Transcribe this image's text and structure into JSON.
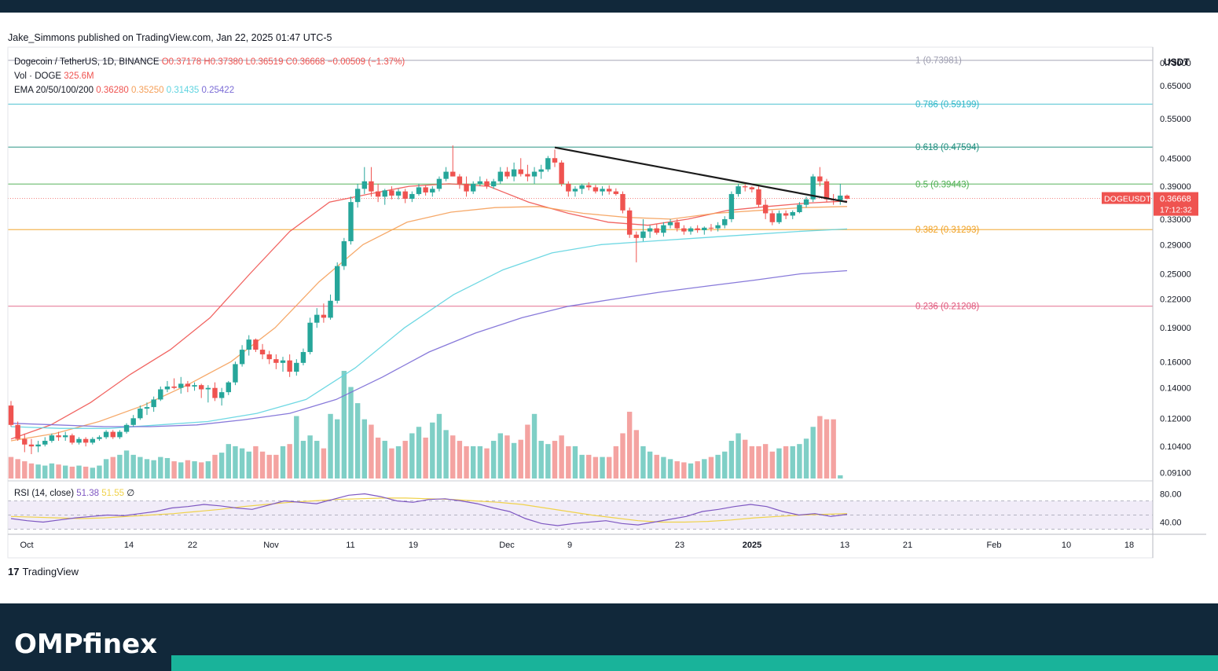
{
  "publisher_line": "Jake_Simmons published on TradingView.com, Jan 22, 2025 01:47 UTC-5",
  "footer": {
    "tradingview_label": "TradingView",
    "tradingview_glyph": "17"
  },
  "brand": {
    "name": "OMPfinex"
  },
  "colors": {
    "up": "#26a69a",
    "down": "#ef5350",
    "ema20": "#ef5350",
    "ema50": "#f5a05a",
    "ema100": "#5fd4e0",
    "ema200": "#7b6cd6",
    "rsi": "#7e57c2",
    "rsi_ma": "#f0d24a",
    "dark": "#11283a",
    "accent": "#19b39a"
  },
  "legend": {
    "symbol": "Dogecoin / TetherUS, 1D, BINANCE",
    "o": "O0.37178",
    "h": "H0.37380",
    "l": "L0.36519",
    "c": "C0.36668",
    "change": "−0.00509 (−1.37%)",
    "vol_label": "Vol · DOGE",
    "vol_value": "325.6M",
    "ema_label": "EMA 20/50/100/200",
    "ema_values": [
      "0.36280",
      "0.35250",
      "0.31435",
      "0.25422"
    ],
    "rsi_label": "RSI (14, close)",
    "rsi_value": "51.38",
    "rsi_ma_value": "51.55",
    "rsi_extra": "∅"
  },
  "price_axis": {
    "currency": "USDT",
    "labels": [
      "0.73000",
      "0.65000",
      "0.55000",
      "0.45000",
      "0.39000",
      "0.33000",
      "0.29000",
      "0.25000",
      "0.22000",
      "0.19000",
      "0.16000",
      "0.14000",
      "0.12000",
      "0.10400",
      "0.09100"
    ],
    "current_symbol": "DOGEUSDT",
    "current_price": "0.36668",
    "countdown": "17:12:32"
  },
  "rsi_axis": {
    "labels": [
      "80.00",
      "40.00"
    ]
  },
  "time_axis": {
    "labels": [
      "Oct",
      "14",
      "22",
      "Nov",
      "11",
      "19",
      "Dec",
      "9",
      "23",
      "2025",
      "13",
      "21",
      "Feb",
      "10",
      "18"
    ]
  },
  "fib_levels": [
    {
      "ratio": 1,
      "price": 0.73981,
      "label": "1 (0.73981)",
      "color": "#9e9eb0"
    },
    {
      "ratio": 0.786,
      "price": 0.59199,
      "label": "0.786 (0.59199)",
      "color": "#2bb6c8"
    },
    {
      "ratio": 0.618,
      "price": 0.47594,
      "label": "0.618 (0.47594)",
      "color": "#1e8e7e"
    },
    {
      "ratio": 0.5,
      "price": 0.39443,
      "label": "0.5 (0.39443)",
      "color": "#4caf50"
    },
    {
      "ratio": 0.382,
      "price": 0.31293,
      "label": "0.382 (0.31293)",
      "color": "#f0a020"
    },
    {
      "ratio": 0.236,
      "price": 0.21208,
      "label": "0.236 (0.21208)",
      "color": "#e0557a"
    }
  ],
  "chart_data": {
    "type": "candlestick",
    "title": "Dogecoin / TetherUS, 1D, BINANCE",
    "ylabel": "USDT",
    "ylim": [
      0.088,
      0.76
    ],
    "y_scale": "log",
    "candles": [
      [
        0.128,
        0.131,
        0.115,
        0.116
      ],
      [
        0.116,
        0.118,
        0.107,
        0.108
      ],
      [
        0.108,
        0.111,
        0.101,
        0.105
      ],
      [
        0.105,
        0.108,
        0.1,
        0.104
      ],
      [
        0.104,
        0.107,
        0.101,
        0.105
      ],
      [
        0.105,
        0.109,
        0.104,
        0.107
      ],
      [
        0.107,
        0.111,
        0.106,
        0.11
      ],
      [
        0.11,
        0.112,
        0.107,
        0.109
      ],
      [
        0.109,
        0.112,
        0.107,
        0.11
      ],
      [
        0.11,
        0.111,
        0.105,
        0.106
      ],
      [
        0.106,
        0.109,
        0.105,
        0.108
      ],
      [
        0.108,
        0.109,
        0.104,
        0.106
      ],
      [
        0.106,
        0.109,
        0.105,
        0.108
      ],
      [
        0.108,
        0.11,
        0.107,
        0.109
      ],
      [
        0.109,
        0.113,
        0.108,
        0.112
      ],
      [
        0.112,
        0.113,
        0.108,
        0.109
      ],
      [
        0.109,
        0.113,
        0.108,
        0.112
      ],
      [
        0.112,
        0.117,
        0.111,
        0.116
      ],
      [
        0.116,
        0.122,
        0.115,
        0.12
      ],
      [
        0.12,
        0.128,
        0.119,
        0.126
      ],
      [
        0.126,
        0.13,
        0.122,
        0.127
      ],
      [
        0.127,
        0.134,
        0.124,
        0.132
      ],
      [
        0.132,
        0.141,
        0.131,
        0.139
      ],
      [
        0.139,
        0.145,
        0.137,
        0.141
      ],
      [
        0.141,
        0.147,
        0.139,
        0.14
      ],
      [
        0.14,
        0.148,
        0.136,
        0.143
      ],
      [
        0.143,
        0.145,
        0.137,
        0.141
      ],
      [
        0.141,
        0.144,
        0.138,
        0.142
      ],
      [
        0.142,
        0.143,
        0.133,
        0.139
      ],
      [
        0.139,
        0.142,
        0.13,
        0.14
      ],
      [
        0.14,
        0.144,
        0.131,
        0.133
      ],
      [
        0.133,
        0.14,
        0.128,
        0.137
      ],
      [
        0.137,
        0.145,
        0.135,
        0.144
      ],
      [
        0.144,
        0.16,
        0.142,
        0.158
      ],
      [
        0.158,
        0.174,
        0.156,
        0.17
      ],
      [
        0.17,
        0.183,
        0.165,
        0.179
      ],
      [
        0.179,
        0.18,
        0.168,
        0.17
      ],
      [
        0.17,
        0.175,
        0.162,
        0.166
      ],
      [
        0.166,
        0.169,
        0.158,
        0.162
      ],
      [
        0.162,
        0.166,
        0.154,
        0.159
      ],
      [
        0.159,
        0.164,
        0.152,
        0.161
      ],
      [
        0.161,
        0.166,
        0.148,
        0.152
      ],
      [
        0.152,
        0.162,
        0.149,
        0.159
      ],
      [
        0.159,
        0.171,
        0.157,
        0.168
      ],
      [
        0.168,
        0.2,
        0.166,
        0.195
      ],
      [
        0.195,
        0.21,
        0.19,
        0.203
      ],
      [
        0.203,
        0.215,
        0.195,
        0.2
      ],
      [
        0.2,
        0.225,
        0.198,
        0.218
      ],
      [
        0.218,
        0.265,
        0.215,
        0.26
      ],
      [
        0.26,
        0.3,
        0.255,
        0.295
      ],
      [
        0.295,
        0.37,
        0.29,
        0.36
      ],
      [
        0.36,
        0.395,
        0.35,
        0.385
      ],
      [
        0.385,
        0.43,
        0.375,
        0.4
      ],
      [
        0.4,
        0.43,
        0.37,
        0.38
      ],
      [
        0.38,
        0.395,
        0.36,
        0.37
      ],
      [
        0.37,
        0.385,
        0.355,
        0.382
      ],
      [
        0.382,
        0.39,
        0.365,
        0.372
      ],
      [
        0.372,
        0.385,
        0.365,
        0.38
      ],
      [
        0.38,
        0.385,
        0.358,
        0.366
      ],
      [
        0.366,
        0.38,
        0.36,
        0.375
      ],
      [
        0.375,
        0.395,
        0.372,
        0.388
      ],
      [
        0.388,
        0.392,
        0.372,
        0.378
      ],
      [
        0.378,
        0.39,
        0.37,
        0.385
      ],
      [
        0.385,
        0.41,
        0.38,
        0.405
      ],
      [
        0.405,
        0.43,
        0.4,
        0.42
      ],
      [
        0.42,
        0.48,
        0.41,
        0.41
      ],
      [
        0.41,
        0.415,
        0.385,
        0.395
      ],
      [
        0.395,
        0.41,
        0.37,
        0.38
      ],
      [
        0.38,
        0.4,
        0.375,
        0.395
      ],
      [
        0.395,
        0.41,
        0.39,
        0.4
      ],
      [
        0.4,
        0.405,
        0.385,
        0.39
      ],
      [
        0.39,
        0.405,
        0.385,
        0.4
      ],
      [
        0.4,
        0.43,
        0.395,
        0.42
      ],
      [
        0.42,
        0.43,
        0.405,
        0.41
      ],
      [
        0.41,
        0.44,
        0.4,
        0.425
      ],
      [
        0.425,
        0.45,
        0.41,
        0.415
      ],
      [
        0.415,
        0.435,
        0.4,
        0.41
      ],
      [
        0.41,
        0.43,
        0.395,
        0.42
      ],
      [
        0.42,
        0.435,
        0.405,
        0.425
      ],
      [
        0.425,
        0.455,
        0.42,
        0.45
      ],
      [
        0.45,
        0.47,
        0.43,
        0.44
      ],
      [
        0.44,
        0.445,
        0.39,
        0.395
      ],
      [
        0.395,
        0.4,
        0.37,
        0.38
      ],
      [
        0.38,
        0.39,
        0.37,
        0.385
      ],
      [
        0.385,
        0.395,
        0.375,
        0.392
      ],
      [
        0.392,
        0.398,
        0.382,
        0.388
      ],
      [
        0.388,
        0.393,
        0.376,
        0.38
      ],
      [
        0.38,
        0.39,
        0.372,
        0.385
      ],
      [
        0.385,
        0.392,
        0.374,
        0.38
      ],
      [
        0.38,
        0.386,
        0.372,
        0.375
      ],
      [
        0.375,
        0.38,
        0.34,
        0.345
      ],
      [
        0.345,
        0.35,
        0.3,
        0.305
      ],
      [
        0.305,
        0.31,
        0.265,
        0.3
      ],
      [
        0.3,
        0.33,
        0.295,
        0.31
      ],
      [
        0.31,
        0.32,
        0.3,
        0.315
      ],
      [
        0.315,
        0.322,
        0.305,
        0.308
      ],
      [
        0.308,
        0.325,
        0.302,
        0.32
      ],
      [
        0.32,
        0.33,
        0.315,
        0.325
      ],
      [
        0.325,
        0.33,
        0.31,
        0.315
      ],
      [
        0.315,
        0.32,
        0.305,
        0.31
      ],
      [
        0.31,
        0.318,
        0.305,
        0.315
      ],
      [
        0.315,
        0.32,
        0.308,
        0.312
      ],
      [
        0.312,
        0.318,
        0.305,
        0.316
      ],
      [
        0.316,
        0.322,
        0.31,
        0.315
      ],
      [
        0.315,
        0.325,
        0.31,
        0.32
      ],
      [
        0.32,
        0.335,
        0.315,
        0.33
      ],
      [
        0.33,
        0.38,
        0.325,
        0.375
      ],
      [
        0.375,
        0.395,
        0.37,
        0.39
      ],
      [
        0.39,
        0.395,
        0.38,
        0.388
      ],
      [
        0.388,
        0.39,
        0.378,
        0.384
      ],
      [
        0.384,
        0.39,
        0.35,
        0.355
      ],
      [
        0.355,
        0.365,
        0.33,
        0.34
      ],
      [
        0.34,
        0.345,
        0.32,
        0.325
      ],
      [
        0.325,
        0.345,
        0.322,
        0.34
      ],
      [
        0.34,
        0.345,
        0.33,
        0.336
      ],
      [
        0.336,
        0.345,
        0.33,
        0.342
      ],
      [
        0.342,
        0.36,
        0.34,
        0.355
      ],
      [
        0.355,
        0.37,
        0.35,
        0.365
      ],
      [
        0.365,
        0.415,
        0.36,
        0.41
      ],
      [
        0.41,
        0.43,
        0.39,
        0.4
      ],
      [
        0.4,
        0.405,
        0.36,
        0.365
      ],
      [
        0.365,
        0.375,
        0.355,
        0.363
      ],
      [
        0.363,
        0.395,
        0.355,
        0.372
      ],
      [
        0.372,
        0.374,
        0.365,
        0.366
      ]
    ],
    "volume": [
      0.2,
      0.18,
      0.16,
      0.14,
      0.13,
      0.12,
      0.14,
      0.13,
      0.12,
      0.11,
      0.12,
      0.11,
      0.1,
      0.12,
      0.18,
      0.2,
      0.22,
      0.26,
      0.22,
      0.2,
      0.18,
      0.17,
      0.2,
      0.19,
      0.16,
      0.15,
      0.17,
      0.16,
      0.15,
      0.16,
      0.22,
      0.24,
      0.32,
      0.3,
      0.28,
      0.25,
      0.3,
      0.25,
      0.22,
      0.22,
      0.3,
      0.32,
      0.58,
      0.35,
      0.4,
      0.35,
      0.28,
      0.6,
      0.55,
      1.0,
      0.85,
      0.7,
      0.55,
      0.5,
      0.38,
      0.35,
      0.28,
      0.3,
      0.35,
      0.42,
      0.48,
      0.38,
      0.52,
      0.6,
      0.45,
      0.4,
      0.35,
      0.3,
      0.3,
      0.3,
      0.28,
      0.35,
      0.42,
      0.4,
      0.33,
      0.36,
      0.5,
      0.6,
      0.35,
      0.32,
      0.35,
      0.4,
      0.3,
      0.3,
      0.22,
      0.22,
      0.2,
      0.2,
      0.2,
      0.3,
      0.42,
      0.62,
      0.45,
      0.3,
      0.25,
      0.22,
      0.2,
      0.18,
      0.16,
      0.15,
      0.14,
      0.16,
      0.18,
      0.2,
      0.22,
      0.25,
      0.35,
      0.42,
      0.36,
      0.3,
      0.3,
      0.32,
      0.25,
      0.28,
      0.3,
      0.3,
      0.32,
      0.37,
      0.48,
      0.58,
      0.55,
      0.55,
      0.03
    ],
    "ema20": [
      0.108,
      0.116,
      0.13,
      0.15,
      0.17,
      0.2,
      0.25,
      0.31,
      0.36,
      0.375,
      0.39,
      0.395,
      0.39,
      0.36,
      0.34,
      0.325,
      0.32,
      0.33,
      0.345,
      0.352,
      0.358,
      0.362
    ],
    "ema50": [
      0.107,
      0.111,
      0.118,
      0.128,
      0.142,
      0.16,
      0.19,
      0.24,
      0.29,
      0.325,
      0.342,
      0.35,
      0.352,
      0.34,
      0.333,
      0.33,
      0.34,
      0.345,
      0.35,
      0.352
    ],
    "ema100": [
      0.115,
      0.114,
      0.114,
      0.116,
      0.118,
      0.123,
      0.132,
      0.155,
      0.19,
      0.225,
      0.255,
      0.278,
      0.29,
      0.295,
      0.3,
      0.305,
      0.31,
      0.314
    ],
    "ema200": [
      0.117,
      0.116,
      0.115,
      0.115,
      0.116,
      0.119,
      0.123,
      0.132,
      0.148,
      0.168,
      0.185,
      0.2,
      0.212,
      0.22,
      0.228,
      0.235,
      0.242,
      0.25,
      0.254
    ],
    "rsi": [
      45,
      42,
      40,
      43,
      46,
      48,
      50,
      49,
      52,
      55,
      60,
      62,
      65,
      63,
      60,
      58,
      64,
      70,
      68,
      66,
      72,
      78,
      80,
      76,
      70,
      68,
      72,
      73,
      70,
      66,
      60,
      55,
      45,
      38,
      35,
      38,
      40,
      42,
      38,
      36,
      40,
      44,
      48,
      55,
      58,
      62,
      65,
      62,
      55,
      50,
      52,
      48,
      51
    ],
    "rsi_ma": [
      48,
      47,
      46,
      45,
      46,
      48,
      50,
      52,
      55,
      58,
      62,
      65,
      68,
      70,
      72,
      73,
      74,
      74,
      73,
      72,
      70,
      68,
      65,
      60,
      55,
      50,
      46,
      42,
      40,
      40,
      41,
      43,
      46,
      48,
      50,
      51,
      52
    ],
    "trendline": {
      "from": [
        0.475
      ],
      "to": [
        0.36
      ]
    }
  }
}
